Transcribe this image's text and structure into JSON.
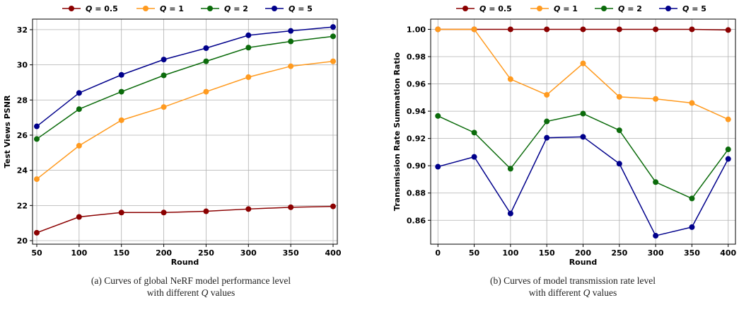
{
  "chart_data": [
    {
      "type": "line",
      "panel": "a",
      "xlabel": "Round",
      "ylabel": "Test Views PSNR",
      "x": [
        50,
        100,
        150,
        200,
        250,
        300,
        350,
        400
      ],
      "xlim": [
        45,
        405
      ],
      "ylim": [
        19.8,
        32.6
      ],
      "xticks": [
        50,
        100,
        150,
        200,
        250,
        300,
        350,
        400
      ],
      "yticks": [
        20,
        22,
        24,
        26,
        28,
        30,
        32
      ],
      "grid": true,
      "legend_position": "top",
      "series": [
        {
          "name_var": "Q",
          "name_val": "0.5",
          "color": "#8b0000",
          "values": [
            20.45,
            21.35,
            21.6,
            21.6,
            21.67,
            21.8,
            21.9,
            21.95
          ]
        },
        {
          "name_var": "Q",
          "name_val": "1",
          "color": "#ff9a1f",
          "values": [
            23.5,
            25.4,
            26.85,
            27.6,
            28.47,
            29.3,
            29.92,
            30.2
          ]
        },
        {
          "name_var": "Q",
          "name_val": "2",
          "color": "#0b6b0b",
          "values": [
            25.78,
            27.48,
            28.47,
            29.4,
            30.2,
            30.98,
            31.33,
            31.62
          ]
        },
        {
          "name_var": "Q",
          "name_val": "5",
          "color": "#00008b",
          "values": [
            26.5,
            28.4,
            29.43,
            30.3,
            30.95,
            31.68,
            31.93,
            32.15
          ]
        }
      ]
    },
    {
      "type": "line",
      "panel": "b",
      "xlabel": "Round",
      "ylabel": "Transmission Rate Summation Ratio",
      "x": [
        0,
        50,
        100,
        150,
        200,
        250,
        300,
        350,
        400
      ],
      "xlim": [
        -10,
        410
      ],
      "ylim": [
        0.8425,
        1.0075
      ],
      "xticks": [
        0,
        50,
        100,
        150,
        200,
        250,
        300,
        350,
        400
      ],
      "yticks": [
        0.86,
        0.88,
        0.9,
        0.92,
        0.94,
        0.96,
        0.98,
        1.0
      ],
      "grid": true,
      "legend_position": "top",
      "series": [
        {
          "name_var": "Q",
          "name_val": "0.5",
          "color": "#8b0000",
          "values": [
            1.0,
            1.0,
            1.0,
            1.0,
            1.0,
            1.0,
            1.0,
            1.0,
            0.9995
          ]
        },
        {
          "name_var": "Q",
          "name_val": "1",
          "color": "#ff9a1f",
          "values": [
            1.0,
            1.0,
            0.9635,
            0.952,
            0.975,
            0.9505,
            0.949,
            0.946,
            0.934
          ]
        },
        {
          "name_var": "Q",
          "name_val": "2",
          "color": "#0b6b0b",
          "values": [
            0.9365,
            0.9243,
            0.8978,
            0.9325,
            0.9382,
            0.926,
            0.888,
            0.876,
            0.912
          ]
        },
        {
          "name_var": "Q",
          "name_val": "5",
          "color": "#00008b",
          "values": [
            0.8993,
            0.9065,
            0.865,
            0.9205,
            0.9212,
            0.9015,
            0.8487,
            0.855,
            0.905
          ]
        }
      ]
    }
  ],
  "captions": {
    "a_line1": "(a) Curves of global NeRF model performance level",
    "a_line2_pre": "with different ",
    "a_line2_var": "Q",
    "a_line2_post": " values",
    "b_line1": "(b) Curves of model transmission rate level",
    "b_line2_pre": "with different ",
    "b_line2_var": "Q",
    "b_line2_post": " values"
  }
}
